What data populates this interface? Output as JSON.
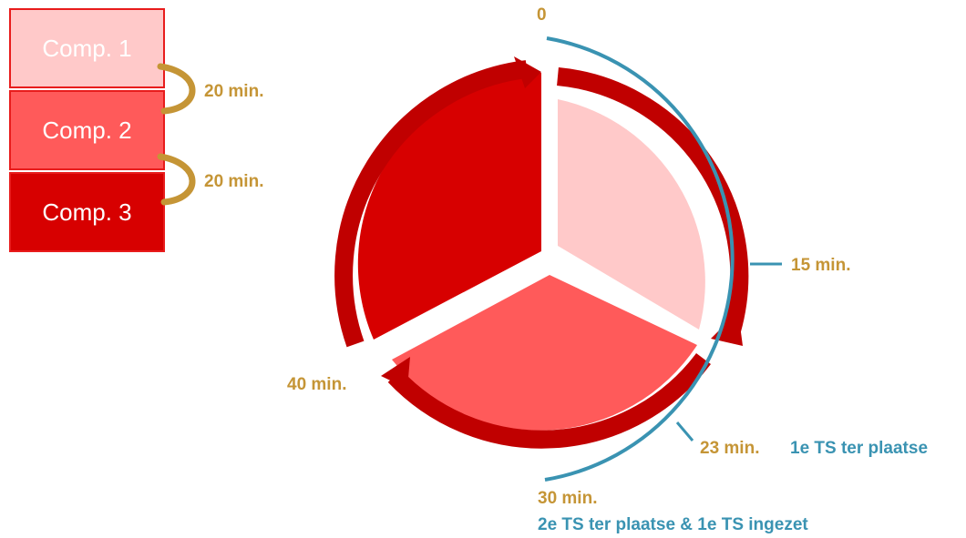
{
  "compartments": {
    "comp1": "Comp. 1",
    "comp2": "Comp. 2",
    "comp3": "Comp. 3",
    "interval1": "20 min.",
    "interval2": "20 min."
  },
  "timeline": {
    "start": "0",
    "t15": "15 min.",
    "t23": "23 min.",
    "t30": "30 min.",
    "t40": "40 min.",
    "event_first_ts": "1e TS ter plaatse",
    "event_second_ts": "2e TS ter plaatse & 1e TS ingezet"
  },
  "colors": {
    "comp1_fill": "#ffc9c9",
    "comp2_fill": "#ff5a5a",
    "comp3_fill": "#d70000",
    "arrow_dark": "#c00000",
    "connector_gold": "#c59536",
    "label_gold": "#c59536",
    "timeline_blue": "#3a93b2"
  }
}
